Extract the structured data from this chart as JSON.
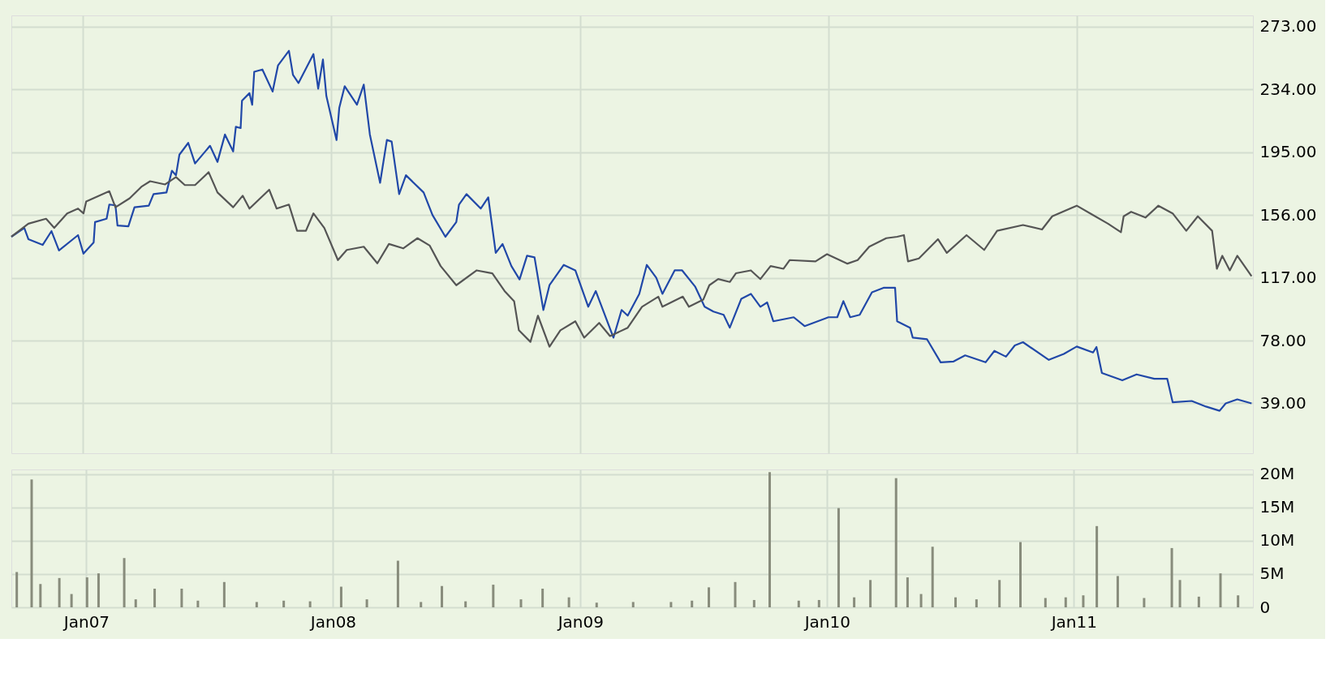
{
  "chart_data": [
    {
      "type": "line",
      "xlim": [
        "2006-09-18",
        "2011-09-17"
      ],
      "ylim": [
        8,
        280
      ],
      "tick_labels": "y",
      "grid": true,
      "xticks": [
        {
          "value": "2007-01-01",
          "label": null
        },
        {
          "value": "2008-01-01",
          "label": null
        },
        {
          "value": "2009-01-01",
          "label": null
        },
        {
          "value": "2010-01-01",
          "label": null
        },
        {
          "value": "2011-01-01",
          "label": null
        }
      ],
      "yticks": [
        {
          "value": 39,
          "label": "39.00"
        },
        {
          "value": 78,
          "label": "78.00"
        },
        {
          "value": 117,
          "label": "117.00"
        },
        {
          "value": 156,
          "label": "156.00"
        },
        {
          "value": 195,
          "label": "195.00"
        },
        {
          "value": 234,
          "label": "234.00"
        },
        {
          "value": 273,
          "label": "273.00"
        }
      ],
      "series": [
        {
          "color": "#2148a8",
          "x": [
            "2006-09-18",
            "2006-10-07",
            "2006-10-13",
            "2006-11-03",
            "2006-11-16",
            "2006-11-27",
            "2006-12-25",
            "2007-01-02",
            "2007-01-17",
            "2007-01-19",
            "2007-02-05",
            "2007-02-09",
            "2007-02-18",
            "2007-02-21",
            "2007-03-09",
            "2007-03-18",
            "2007-04-08",
            "2007-04-15",
            "2007-05-04",
            "2007-05-12",
            "2007-05-18",
            "2007-05-23",
            "2007-06-05",
            "2007-06-15",
            "2007-07-07",
            "2007-07-18",
            "2007-07-29",
            "2007-08-10",
            "2007-08-14",
            "2007-08-21",
            "2007-08-23",
            "2007-09-03",
            "2007-09-07",
            "2007-09-10",
            "2007-09-22",
            "2007-10-07",
            "2007-10-15",
            "2007-10-31",
            "2007-11-06",
            "2007-11-14",
            "2007-12-06",
            "2007-12-13",
            "2007-12-20",
            "2007-12-25",
            "2008-01-09",
            "2008-01-13",
            "2008-01-21",
            "2008-02-08",
            "2008-02-18",
            "2008-02-27",
            "2008-03-13",
            "2008-03-23",
            "2008-03-30",
            "2008-04-10",
            "2008-04-20",
            "2008-05-16",
            "2008-05-29",
            "2008-06-17",
            "2008-07-03",
            "2008-07-07",
            "2008-07-18",
            "2008-08-08",
            "2008-08-19",
            "2008-08-30",
            "2008-09-09",
            "2008-09-22",
            "2008-10-04",
            "2008-10-15",
            "2008-10-26",
            "2008-11-08",
            "2008-11-17",
            "2008-12-08",
            "2008-12-25",
            "2009-01-13",
            "2009-01-24",
            "2009-02-19",
            "2009-03-03",
            "2009-03-12",
            "2009-03-29",
            "2009-04-09",
            "2009-04-23",
            "2009-05-02",
            "2009-05-20",
            "2009-05-31",
            "2009-06-19",
            "2009-07-03",
            "2009-07-16",
            "2009-07-31",
            "2009-08-09",
            "2009-08-26",
            "2009-09-09",
            "2009-09-23",
            "2009-10-03",
            "2009-10-12",
            "2009-11-11",
            "2009-11-27",
            "2010-01-01",
            "2010-01-14",
            "2010-01-23",
            "2010-02-02",
            "2010-02-16",
            "2010-03-06",
            "2010-03-23",
            "2010-04-09",
            "2010-04-12",
            "2010-05-01",
            "2010-05-05",
            "2010-05-26",
            "2010-06-15",
            "2010-07-04",
            "2010-07-21",
            "2010-08-20",
            "2010-09-02",
            "2010-09-19",
            "2010-10-02",
            "2010-10-14",
            "2010-11-21",
            "2010-12-13",
            "2011-01-01",
            "2011-01-25",
            "2011-01-30",
            "2011-02-07",
            "2011-03-09",
            "2011-03-30",
            "2011-04-25",
            "2011-05-14",
            "2011-05-22",
            "2011-06-19",
            "2011-07-10",
            "2011-07-30",
            "2011-08-08",
            "2011-08-25",
            "2011-09-15"
          ],
          "values": [
            142.5,
            148,
            141,
            137.4,
            146,
            134,
            143.5,
            132,
            139,
            151.6,
            153.7,
            162.5,
            162,
            149.5,
            149,
            160.8,
            161.8,
            169,
            170,
            183.5,
            180.7,
            193.5,
            200.8,
            188,
            199,
            189,
            206,
            195.5,
            210.8,
            210,
            227,
            231.7,
            224.5,
            245,
            246.4,
            232.7,
            249,
            258,
            243,
            238,
            256,
            234.5,
            252.6,
            230,
            202.6,
            222.6,
            236,
            224.5,
            237,
            206,
            176,
            202.6,
            201.6,
            169,
            180.7,
            170,
            156,
            142.5,
            151.6,
            162.5,
            169,
            160,
            167,
            132.5,
            138,
            124.3,
            116,
            130.7,
            129.7,
            97,
            112.4,
            125,
            121.6,
            99,
            108.8,
            79.8,
            97,
            93.5,
            107,
            125,
            117,
            107,
            121.6,
            121.6,
            111.6,
            99,
            96,
            94,
            86,
            104,
            107,
            99,
            101.7,
            90,
            92.5,
            87,
            92.5,
            92.5,
            102.5,
            92.5,
            94,
            108,
            110.8,
            110.8,
            90,
            86,
            79.8,
            78.8,
            64.5,
            65,
            68.8,
            64.5,
            71.6,
            68,
            75,
            77,
            66,
            69.7,
            74.3,
            70.6,
            74,
            57.9,
            53.3,
            57,
            54.3,
            54.3,
            39.7,
            40.5,
            37,
            34.4,
            39,
            41.5,
            39
          ]
        },
        {
          "color": "#555555",
          "x": [
            "2006-09-18",
            "2006-10-13",
            "2006-11-08",
            "2006-11-20",
            "2006-12-09",
            "2006-12-25",
            "2007-01-02",
            "2007-01-06",
            "2007-02-09",
            "2007-02-18",
            "2007-03-11",
            "2007-03-28",
            "2007-04-10",
            "2007-05-02",
            "2007-05-18",
            "2007-05-31",
            "2007-06-15",
            "2007-07-05",
            "2007-07-18",
            "2007-08-10",
            "2007-08-24",
            "2007-09-03",
            "2007-10-02",
            "2007-10-13",
            "2007-10-31",
            "2007-11-06",
            "2007-11-12",
            "2007-11-25",
            "2007-12-06",
            "2007-12-22",
            "2008-01-11",
            "2008-01-24",
            "2008-02-18",
            "2008-03-09",
            "2008-03-26",
            "2008-04-16",
            "2008-05-07",
            "2008-05-25",
            "2008-06-10",
            "2008-07-03",
            "2008-08-02",
            "2008-08-25",
            "2008-09-12",
            "2008-09-26",
            "2008-10-03",
            "2008-10-20",
            "2008-10-31",
            "2008-11-17",
            "2008-12-03",
            "2008-12-25",
            "2009-01-07",
            "2009-01-29",
            "2009-02-14",
            "2009-03-12",
            "2009-04-02",
            "2009-04-26",
            "2009-05-02",
            "2009-06-01",
            "2009-06-10",
            "2009-07-01",
            "2009-07-10",
            "2009-07-23",
            "2009-08-09",
            "2009-08-18",
            "2009-09-09",
            "2009-09-23",
            "2009-10-08",
            "2009-10-27",
            "2009-11-05",
            "2009-12-13",
            "2009-12-30",
            "2010-01-29",
            "2010-02-13",
            "2010-03-02",
            "2010-03-27",
            "2010-04-12",
            "2010-04-22",
            "2010-04-28",
            "2010-05-14",
            "2010-06-11",
            "2010-06-24",
            "2010-07-23",
            "2010-08-18",
            "2010-09-06",
            "2010-10-14",
            "2010-11-11",
            "2010-11-26",
            "2011-01-01",
            "2011-01-25",
            "2011-02-16",
            "2011-03-07",
            "2011-03-11",
            "2011-03-22",
            "2011-04-12",
            "2011-05-01",
            "2011-05-22",
            "2011-06-11",
            "2011-06-28",
            "2011-07-19",
            "2011-07-26",
            "2011-08-03",
            "2011-08-14",
            "2011-08-25",
            "2011-09-15"
          ],
          "values": [
            142.5,
            150.6,
            153.7,
            148,
            157,
            160,
            157,
            164.4,
            170.8,
            160.8,
            166.4,
            173.5,
            177,
            175,
            179.6,
            174.6,
            174.6,
            182.6,
            170,
            160.8,
            168,
            160,
            171.7,
            160,
            162.5,
            154.4,
            146.2,
            146.2,
            157,
            148,
            128,
            134.3,
            136.3,
            126,
            138,
            135.3,
            141.6,
            137,
            124.3,
            112.4,
            121.6,
            119.8,
            108.8,
            102.5,
            84.4,
            77.2,
            93.5,
            74.2,
            84.4,
            90,
            79.8,
            89,
            80.8,
            86,
            99,
            105.3,
            99,
            105.3,
            99,
            103.4,
            112.4,
            116.2,
            114.4,
            119.8,
            121.6,
            116.2,
            124.3,
            122.6,
            128,
            127.2,
            131.7,
            125.8,
            128,
            136.3,
            141.6,
            142.5,
            143.5,
            127.2,
            129,
            141,
            132.5,
            143.5,
            134.3,
            146.2,
            149.8,
            147,
            155.2,
            161.8,
            156,
            150.6,
            145.3,
            155.2,
            158,
            154.4,
            161.8,
            157,
            146.2,
            155.2,
            146.2,
            122.6,
            130.7,
            121.6,
            130.7,
            118
          ]
        }
      ]
    },
    {
      "type": "bar",
      "xlim": [
        "2006-09-18",
        "2011-09-17"
      ],
      "ylim": [
        0,
        20.7
      ],
      "grid": true,
      "color": "#888c7c",
      "xticks": [
        {
          "value": "2007-01-01",
          "label": "Jan07"
        },
        {
          "value": "2008-01-01",
          "label": "Jan08"
        },
        {
          "value": "2009-01-01",
          "label": "Jan09"
        },
        {
          "value": "2010-01-01",
          "label": "Jan10"
        },
        {
          "value": "2011-01-01",
          "label": "Jan11"
        }
      ],
      "yticks": [
        0,
        {
          "value": 5,
          "label": "5M"
        },
        {
          "value": 10,
          "label": "10M"
        },
        {
          "value": 15,
          "label": "15M"
        },
        {
          "value": 20,
          "label": "20M"
        }
      ],
      "x": [
        "2006-09-20",
        "2006-10-12",
        "2006-10-25",
        "2006-11-22",
        "2006-12-10",
        "2007-01-02",
        "2007-01-19",
        "2007-02-26",
        "2007-03-15",
        "2007-04-12",
        "2007-05-22",
        "2007-06-15",
        "2007-07-24",
        "2007-09-10",
        "2007-10-20",
        "2007-11-28",
        "2008-01-13",
        "2008-02-20",
        "2008-04-06",
        "2008-05-10",
        "2008-06-10",
        "2008-07-15",
        "2008-08-25",
        "2008-10-05",
        "2008-11-06",
        "2008-12-15",
        "2009-01-25",
        "2009-03-20",
        "2009-05-15",
        "2009-06-15",
        "2009-07-10",
        "2009-08-18",
        "2009-09-15",
        "2009-10-08",
        "2009-11-20",
        "2009-12-20",
        "2010-01-18",
        "2010-02-10",
        "2010-03-06",
        "2010-04-13",
        "2010-04-30",
        "2010-05-20",
        "2010-06-06",
        "2010-07-10",
        "2010-08-10",
        "2010-09-13",
        "2010-10-14",
        "2010-11-20",
        "2010-12-20",
        "2011-01-15",
        "2011-02-04",
        "2011-03-07",
        "2011-04-15",
        "2011-05-26",
        "2011-06-07",
        "2011-07-05",
        "2011-08-06",
        "2011-09-01"
      ],
      "values": [
        5.3,
        19.2,
        3.5,
        4.4,
        2.0,
        4.5,
        5.1,
        7.4,
        1.2,
        2.8,
        2.8,
        1.0,
        3.8,
        0.8,
        1.0,
        0.9,
        3.1,
        1.2,
        7.0,
        0.8,
        3.2,
        0.9,
        3.4,
        1.2,
        2.8,
        1.5,
        0.7,
        0.8,
        0.8,
        1.0,
        3.0,
        3.8,
        1.1,
        20.3,
        1.0,
        1.1,
        14.9,
        1.5,
        4.1,
        19.4,
        4.5,
        2.0,
        9.1,
        1.5,
        1.2,
        4.1,
        9.8,
        1.4,
        1.5,
        1.8,
        12.2,
        4.7,
        1.4,
        8.9,
        4.1,
        1.6,
        5.1,
        1.8
      ]
    }
  ]
}
